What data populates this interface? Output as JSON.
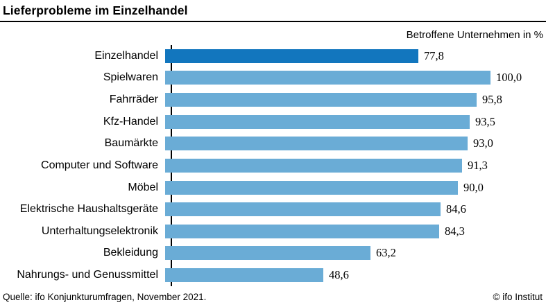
{
  "title": "Lieferprobleme im Einzelhandel",
  "subtitle": "Betroffene Unternehmen in %",
  "footer": {
    "source": "Quelle: ifo Konjunkturumfragen, November 2021.",
    "copyright": "© ifo Institut"
  },
  "colors": {
    "highlight_bar": "#1276BE",
    "default_bar": "#6AACD6",
    "axis": "#000000",
    "title_rule": "#000000",
    "text": "#000000"
  },
  "chart_data": {
    "type": "bar",
    "orientation": "horizontal",
    "title": "Lieferprobleme im Einzelhandel",
    "xlabel": "Betroffene Unternehmen in %",
    "xlim": [
      0,
      100
    ],
    "grid": false,
    "legend": false,
    "highlight_index": 0,
    "categories": [
      "Einzelhandel",
      "Spielwaren",
      "Fahrräder",
      "Kfz-Handel",
      "Baumärkte",
      "Computer und Software",
      "Möbel",
      "Elektrische Haushaltsgeräte",
      "Unterhaltungselektronik",
      "Bekleidung",
      "Nahrungs- und Genussmittel"
    ],
    "values": [
      77.8,
      100.0,
      95.8,
      93.5,
      93.0,
      91.3,
      90.0,
      84.6,
      84.3,
      63.2,
      48.6
    ],
    "value_labels": [
      "77,8",
      "100,0",
      "95,8",
      "93,5",
      "93,0",
      "91,3",
      "90,0",
      "84,6",
      "84,3",
      "63,2",
      "48,6"
    ]
  }
}
